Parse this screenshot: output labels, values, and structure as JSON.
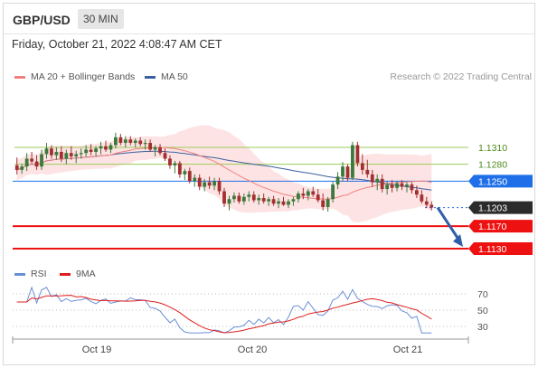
{
  "header": {
    "symbol": "GBP/USD",
    "timeframe": "30 MIN",
    "datetime": "Friday, October 21, 2022 4:08:47 AM CET"
  },
  "legend": {
    "ma20_label": "MA 20 + Bollinger Bands",
    "ma50_label": "MA 50",
    "copyright": "Research © 2022 Trading Central",
    "rsi_label": "RSI",
    "rsi_ma_label": "9MA"
  },
  "colors": {
    "ma20": "#f08080",
    "ma50": "#3a5f9f",
    "bollinger_fill": "#fde0e0",
    "candle_up": "#3c7a3c",
    "candle_down": "#a33030",
    "resistance_green": "#9acd5a",
    "pivot_blue": "#1e6fe8",
    "support_red": "#ee1111",
    "current_price": "#2b2b2b",
    "rsi_line": "#6a8fd6",
    "rsi_ma_line": "#e01c1c"
  },
  "levels": [
    {
      "price": "1.1310",
      "type": "resistance"
    },
    {
      "price": "1.1280",
      "type": "resistance"
    },
    {
      "price": "1.1250",
      "type": "pivot"
    },
    {
      "price": "1.1203",
      "type": "current"
    },
    {
      "price": "1.1170",
      "type": "support"
    },
    {
      "price": "1.1130",
      "type": "support"
    }
  ],
  "rsi_axis": [
    "70",
    "50",
    "30"
  ],
  "x_axis": [
    "Oct 19",
    "Oct 20",
    "Oct 21"
  ],
  "chart_data": {
    "type": "candlestick",
    "price_axis_levels": [
      1.131,
      1.128,
      1.125,
      1.1203,
      1.117,
      1.113
    ],
    "candles": [
      [
        1.1278,
        1.1292,
        1.1262,
        1.127
      ],
      [
        1.127,
        1.1281,
        1.1263,
        1.1276
      ],
      [
        1.1276,
        1.13,
        1.1268,
        1.129
      ],
      [
        1.129,
        1.1302,
        1.1281,
        1.1285
      ],
      [
        1.1285,
        1.1296,
        1.127,
        1.1276
      ],
      [
        1.1276,
        1.1306,
        1.127,
        1.1298
      ],
      [
        1.1298,
        1.1318,
        1.129,
        1.1308
      ],
      [
        1.1308,
        1.1314,
        1.129,
        1.1296
      ],
      [
        1.1296,
        1.131,
        1.1288,
        1.1302
      ],
      [
        1.1302,
        1.1312,
        1.1284,
        1.129
      ],
      [
        1.129,
        1.1306,
        1.128,
        1.13
      ],
      [
        1.13,
        1.1312,
        1.1288,
        1.1294
      ],
      [
        1.1294,
        1.1304,
        1.1282,
        1.1298
      ],
      [
        1.1298,
        1.1308,
        1.129,
        1.13
      ],
      [
        1.13,
        1.1314,
        1.1294,
        1.1306
      ],
      [
        1.1306,
        1.1316,
        1.1296,
        1.1302
      ],
      [
        1.1302,
        1.1312,
        1.1294,
        1.1308
      ],
      [
        1.1308,
        1.132,
        1.1298,
        1.1312
      ],
      [
        1.1312,
        1.1322,
        1.1302,
        1.1306
      ],
      [
        1.1306,
        1.1318,
        1.13,
        1.1314
      ],
      [
        1.1314,
        1.1336,
        1.1308,
        1.1328
      ],
      [
        1.1328,
        1.1334,
        1.1314,
        1.1318
      ],
      [
        1.1318,
        1.133,
        1.131,
        1.1324
      ],
      [
        1.1324,
        1.133,
        1.1314,
        1.1318
      ],
      [
        1.1318,
        1.1326,
        1.131,
        1.1322
      ],
      [
        1.1322,
        1.1328,
        1.1312,
        1.1316
      ],
      [
        1.1316,
        1.1324,
        1.1306,
        1.1318
      ],
      [
        1.1318,
        1.1324,
        1.1302,
        1.1306
      ],
      [
        1.1306,
        1.1314,
        1.1294,
        1.131
      ],
      [
        1.131,
        1.1316,
        1.1296,
        1.13
      ],
      [
        1.13,
        1.1308,
        1.1286,
        1.129
      ],
      [
        1.129,
        1.1296,
        1.1272,
        1.1278
      ],
      [
        1.1278,
        1.1286,
        1.1264,
        1.1282
      ],
      [
        1.1282,
        1.1286,
        1.1256,
        1.1262
      ],
      [
        1.1262,
        1.1272,
        1.1252,
        1.1268
      ],
      [
        1.1268,
        1.1274,
        1.1246,
        1.125
      ],
      [
        1.125,
        1.1262,
        1.124,
        1.1256
      ],
      [
        1.1256,
        1.1262,
        1.1234,
        1.124
      ],
      [
        1.124,
        1.1254,
        1.1232,
        1.1248
      ],
      [
        1.1248,
        1.1258,
        1.1236,
        1.1242
      ],
      [
        1.1242,
        1.1256,
        1.1234,
        1.125
      ],
      [
        1.125,
        1.1256,
        1.1226,
        1.1232
      ],
      [
        1.1232,
        1.1238,
        1.1204,
        1.121
      ],
      [
        1.121,
        1.1224,
        1.1198,
        1.1218
      ],
      [
        1.1218,
        1.123,
        1.1212,
        1.1224
      ],
      [
        1.1224,
        1.123,
        1.121,
        1.1214
      ],
      [
        1.1214,
        1.1228,
        1.1208,
        1.1222
      ],
      [
        1.1222,
        1.1232,
        1.1214,
        1.1226
      ],
      [
        1.1226,
        1.1232,
        1.1212,
        1.1216
      ],
      [
        1.1216,
        1.1226,
        1.1208,
        1.122
      ],
      [
        1.122,
        1.1228,
        1.121,
        1.1214
      ],
      [
        1.1214,
        1.1222,
        1.1206,
        1.1218
      ],
      [
        1.1218,
        1.1224,
        1.1206,
        1.121
      ],
      [
        1.121,
        1.122,
        1.1202,
        1.1214
      ],
      [
        1.1214,
        1.1222,
        1.1206,
        1.1208
      ],
      [
        1.1208,
        1.1218,
        1.1202,
        1.1214
      ],
      [
        1.1214,
        1.1222,
        1.1206,
        1.1218
      ],
      [
        1.1218,
        1.1232,
        1.1212,
        1.1228
      ],
      [
        1.1228,
        1.1238,
        1.1218,
        1.1224
      ],
      [
        1.1224,
        1.1236,
        1.1216,
        1.1232
      ],
      [
        1.1232,
        1.124,
        1.1222,
        1.1226
      ],
      [
        1.1226,
        1.1236,
        1.1212,
        1.1216
      ],
      [
        1.1216,
        1.1228,
        1.1198,
        1.1204
      ],
      [
        1.1204,
        1.1222,
        1.1196,
        1.1218
      ],
      [
        1.1218,
        1.125,
        1.1212,
        1.1244
      ],
      [
        1.1244,
        1.1266,
        1.1236,
        1.1258
      ],
      [
        1.1258,
        1.1284,
        1.125,
        1.1276
      ],
      [
        1.1276,
        1.128,
        1.125,
        1.1256
      ],
      [
        1.1256,
        1.132,
        1.1252,
        1.1314
      ],
      [
        1.1314,
        1.132,
        1.1276,
        1.1282
      ],
      [
        1.1282,
        1.1298,
        1.1262,
        1.127
      ],
      [
        1.127,
        1.1288,
        1.1256,
        1.1262
      ],
      [
        1.1262,
        1.127,
        1.124,
        1.1248
      ],
      [
        1.1248,
        1.1262,
        1.1234,
        1.1254
      ],
      [
        1.1254,
        1.1262,
        1.123,
        1.1236
      ],
      [
        1.1236,
        1.125,
        1.1226,
        1.1244
      ],
      [
        1.1244,
        1.1252,
        1.123,
        1.1238
      ],
      [
        1.1238,
        1.125,
        1.1232,
        1.1246
      ],
      [
        1.1246,
        1.1252,
        1.1234,
        1.124
      ],
      [
        1.124,
        1.1248,
        1.123,
        1.1244
      ],
      [
        1.1244,
        1.1248,
        1.1228,
        1.1234
      ],
      [
        1.1234,
        1.1242,
        1.122,
        1.1226
      ],
      [
        1.1226,
        1.1234,
        1.121,
        1.1214
      ],
      [
        1.1214,
        1.1222,
        1.1202,
        1.1208
      ],
      [
        1.1208,
        1.1214,
        1.1198,
        1.1203
      ]
    ],
    "forecast_arrow": {
      "from": 1.1203,
      "to": 1.113
    },
    "rsi_axis": [
      70,
      50,
      30
    ]
  }
}
